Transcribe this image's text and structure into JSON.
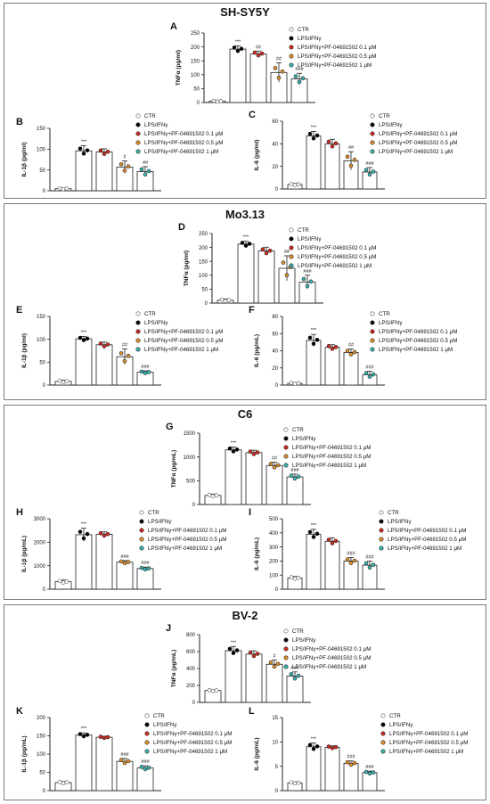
{
  "legend_labels": [
    "CTR",
    "LPS/IFNγ",
    "LPS/IFNγ+PF-04691502 0.1 μM",
    "LPS/IFNγ+PF-04691502 0.5 μM",
    "LPS/IFNγ+PF-04691502 1 μM"
  ],
  "colors": {
    "ctr": "#ffffff",
    "lps": "#000000",
    "pf01": "#d42a1e",
    "pf05": "#e2902c",
    "pf1": "#38b6b0"
  },
  "sections": [
    {
      "title": "SH-SY5Y"
    },
    {
      "title": "Mo3.13"
    },
    {
      "title": "C6"
    },
    {
      "title": "BV-2"
    }
  ],
  "chart_data": [
    {
      "type": "bar",
      "letter": "A",
      "section": "SH-SY5Y",
      "ylabel": "TNFα (pg/ml)",
      "ylim": [
        0,
        250
      ],
      "yticks": [
        0,
        50,
        100,
        150,
        200,
        250
      ],
      "categories": [
        "CTR",
        "LPS/IFNγ",
        "PF 0.1 μM",
        "PF 0.5 μM",
        "PF 1 μM"
      ],
      "values": [
        5,
        192,
        175,
        108,
        85
      ],
      "errors": [
        3,
        12,
        10,
        35,
        20
      ],
      "annotations": [
        "",
        "***",
        "##",
        "##",
        "###"
      ]
    },
    {
      "type": "bar",
      "letter": "B",
      "section": "SH-SY5Y",
      "ylabel": "IL-1β (pg/ml)",
      "ylim": [
        0,
        150
      ],
      "yticks": [
        0,
        50,
        100,
        150
      ],
      "categories": [
        "CTR",
        "LPS/IFNγ",
        "PF 0.1 μM",
        "PF 0.5 μM",
        "PF 1 μM"
      ],
      "values": [
        5,
        96,
        93,
        57,
        46
      ],
      "errors": [
        2,
        12,
        8,
        15,
        12
      ],
      "annotations": [
        "",
        "***",
        "",
        "#",
        "##"
      ]
    },
    {
      "type": "bar",
      "letter": "C",
      "section": "SH-SY5Y",
      "ylabel": "IL-6 (pg/ml)",
      "ylim": [
        0,
        60
      ],
      "yticks": [
        0,
        20,
        40,
        60
      ],
      "categories": [
        "CTR",
        "LPS/IFNγ",
        "PF 0.1 μM",
        "PF 0.5 μM",
        "PF 1 μM"
      ],
      "values": [
        4,
        47,
        40,
        25,
        15
      ],
      "errors": [
        1,
        4,
        4,
        8,
        4
      ],
      "annotations": [
        "",
        "***",
        "",
        "##",
        "###"
      ]
    },
    {
      "type": "bar",
      "letter": "D",
      "section": "Mo3.13",
      "ylabel": "TNFα (pg/ml)",
      "ylim": [
        0,
        250
      ],
      "yticks": [
        0,
        50,
        100,
        150,
        200,
        250
      ],
      "categories": [
        "CTR",
        "LPS/IFNγ",
        "PF 0.1 μM",
        "PF 0.5 μM",
        "PF 1 μM"
      ],
      "values": [
        10,
        212,
        187,
        125,
        75
      ],
      "errors": [
        5,
        10,
        14,
        45,
        25
      ],
      "annotations": [
        "",
        "***",
        "",
        "##",
        "###"
      ]
    },
    {
      "type": "bar",
      "letter": "E",
      "section": "Mo3.13",
      "ylabel": "IL-1β (pg/ml)",
      "ylim": [
        0,
        150
      ],
      "yticks": [
        0,
        50,
        100,
        150
      ],
      "categories": [
        "CTR",
        "LPS/IFNγ",
        "PF 0.1 μM",
        "PF 0.5 μM",
        "PF 1 μM"
      ],
      "values": [
        8,
        101,
        88,
        62,
        28
      ],
      "errors": [
        3,
        5,
        6,
        17,
        3
      ],
      "annotations": [
        "",
        "***",
        "",
        "##",
        "###"
      ]
    },
    {
      "type": "bar",
      "letter": "F",
      "section": "Mo3.13",
      "ylabel": "IL-6 (pg/mL)",
      "ylim": [
        0,
        80
      ],
      "yticks": [
        0,
        20,
        40,
        60,
        80
      ],
      "categories": [
        "CTR",
        "LPS/IFNγ",
        "PF 0.1 μM",
        "PF 0.5 μM",
        "PF 1 μM"
      ],
      "values": [
        2,
        52,
        44,
        38,
        12
      ],
      "errors": [
        1,
        7,
        3,
        4,
        4
      ],
      "annotations": [
        "",
        "***",
        "",
        "##",
        "###"
      ]
    },
    {
      "type": "bar",
      "letter": "G",
      "section": "C6",
      "ylabel": "TNFα (pg/mL)",
      "ylim": [
        0,
        1500
      ],
      "yticks": [
        0,
        500,
        1000,
        1500
      ],
      "categories": [
        "CTR",
        "LPS/IFNγ",
        "PF 0.1 μM",
        "PF 0.5 μM",
        "PF 1 μM"
      ],
      "values": [
        190,
        1150,
        1090,
        820,
        580
      ],
      "errors": [
        30,
        60,
        50,
        70,
        60
      ],
      "annotations": [
        "",
        "***",
        "",
        "##",
        "###"
      ]
    },
    {
      "type": "bar",
      "letter": "H",
      "section": "C6",
      "ylabel": "IL-1β (pg/mL)",
      "ylim": [
        0,
        3000
      ],
      "yticks": [
        0,
        1000,
        2000,
        3000
      ],
      "categories": [
        "CTR",
        "LPS/IFNγ",
        "PF 0.1 μM",
        "PF 0.5 μM",
        "PF 1 μM"
      ],
      "values": [
        320,
        2320,
        2340,
        1150,
        880
      ],
      "errors": [
        70,
        280,
        100,
        70,
        60
      ],
      "annotations": [
        "",
        "***",
        "",
        "###",
        "###"
      ]
    },
    {
      "type": "bar",
      "letter": "I",
      "section": "C6",
      "ylabel": "IL-6 (pg/mL)",
      "ylim": [
        0,
        500
      ],
      "yticks": [
        0,
        100,
        200,
        300,
        400,
        500
      ],
      "categories": [
        "CTR",
        "LPS/IFNγ",
        "PF 0.1 μM",
        "PF 0.5 μM",
        "PF 1 μM"
      ],
      "values": [
        80,
        390,
        340,
        200,
        170
      ],
      "errors": [
        10,
        35,
        25,
        25,
        30
      ],
      "annotations": [
        "",
        "***",
        "",
        "###",
        "###"
      ]
    },
    {
      "type": "bar",
      "letter": "J",
      "section": "BV-2",
      "ylabel": "TNFα (pg/mL)",
      "ylim": [
        0,
        800
      ],
      "yticks": [
        0,
        200,
        400,
        600,
        800
      ],
      "categories": [
        "CTR",
        "LPS/IFNγ",
        "PF 0.1 μM",
        "PF 0.5 μM",
        "PF 1 μM"
      ],
      "values": [
        140,
        610,
        570,
        450,
        310
      ],
      "errors": [
        10,
        50,
        40,
        50,
        50
      ],
      "annotations": [
        "",
        "***",
        "",
        "#",
        "###"
      ]
    },
    {
      "type": "bar",
      "letter": "K",
      "section": "BV-2",
      "ylabel": "IL-1β (pg/mL)",
      "ylim": [
        0,
        200
      ],
      "yticks": [
        0,
        50,
        100,
        150,
        200
      ],
      "categories": [
        "CTR",
        "LPS/IFNγ",
        "PF 0.1 μM",
        "PF 0.5 μM",
        "PF 1 μM"
      ],
      "values": [
        22,
        152,
        146,
        80,
        62
      ],
      "errors": [
        3,
        6,
        3,
        8,
        6
      ],
      "annotations": [
        "",
        "***",
        "",
        "###",
        "###"
      ]
    },
    {
      "type": "bar",
      "letter": "L",
      "section": "BV-2",
      "ylabel": "IL-6 (pg/mL)",
      "ylim": [
        0,
        15
      ],
      "yticks": [
        0,
        5,
        10,
        15
      ],
      "categories": [
        "CTR",
        "LPS/IFNγ",
        "PF 0.1 μM",
        "PF 0.5 μM",
        "PF 1 μM"
      ],
      "values": [
        1.6,
        9.0,
        8.9,
        5.6,
        3.7
      ],
      "errors": [
        0.2,
        0.8,
        0.3,
        0.5,
        0.3
      ],
      "annotations": [
        "",
        "***",
        "",
        "###",
        "###"
      ]
    }
  ]
}
